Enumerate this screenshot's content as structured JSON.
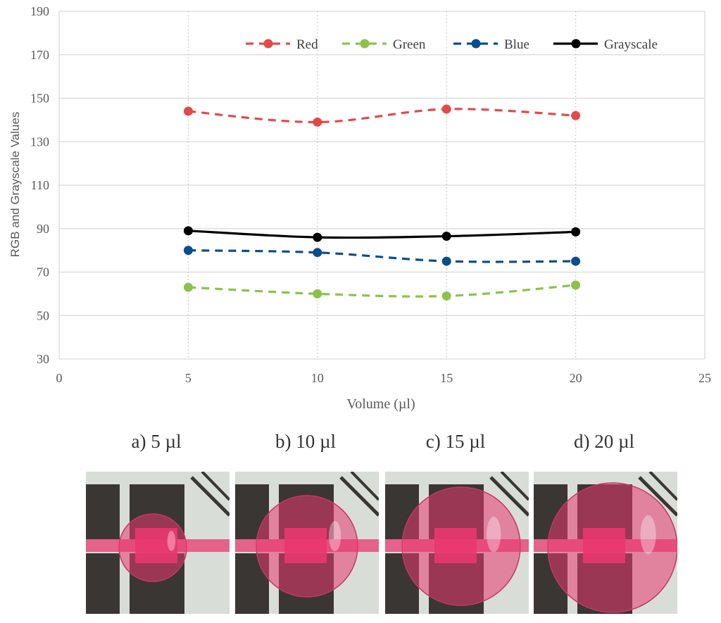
{
  "chart_data": {
    "type": "line",
    "title": "",
    "xlabel": "Volume (µl)",
    "ylabel": "RGB and Grayscale Values",
    "xlim": [
      0,
      25
    ],
    "ylim": [
      30,
      190
    ],
    "x_ticks": [
      0,
      5,
      10,
      15,
      20,
      25
    ],
    "y_ticks": [
      30,
      50,
      70,
      90,
      110,
      130,
      150,
      170,
      190
    ],
    "grid": true,
    "legend_position": "top-right",
    "x": [
      5,
      10,
      15,
      20
    ],
    "series": [
      {
        "name": "Red",
        "values": [
          144,
          139,
          145,
          142
        ],
        "color": "#e24a4a",
        "dash": "dashed"
      },
      {
        "name": "Green",
        "values": [
          63,
          60,
          59,
          64
        ],
        "color": "#8bc34a",
        "dash": "dashed"
      },
      {
        "name": "Blue",
        "values": [
          80,
          79,
          75,
          75
        ],
        "color": "#0a4d8c",
        "dash": "dashed"
      },
      {
        "name": "Grayscale",
        "values": [
          89,
          86,
          86.5,
          88.5
        ],
        "color": "#000000",
        "dash": "solid"
      }
    ]
  },
  "captions": [
    "a) 5 µl",
    "b) 10 µl",
    "c) 15 µl",
    "d) 20 µl"
  ],
  "photos": [
    {
      "droplet_volume": 5,
      "background": "#d9ddd8",
      "pink": "#e8386f"
    },
    {
      "droplet_volume": 10,
      "background": "#d9ddd8",
      "pink": "#e8386f"
    },
    {
      "droplet_volume": 15,
      "background": "#d9ddd8",
      "pink": "#e8386f"
    },
    {
      "droplet_volume": 20,
      "background": "#d9ddd8",
      "pink": "#e8386f"
    }
  ]
}
